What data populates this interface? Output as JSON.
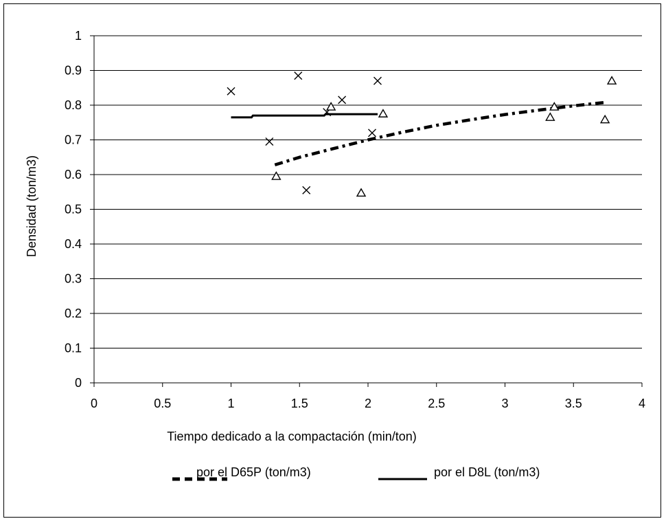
{
  "chart_data": {
    "type": "scatter",
    "xlabel": "Tiempo dedicado a la compactación (min/ton)",
    "ylabel": "Densidad (ton/m3)",
    "xlim": [
      0,
      4
    ],
    "ylim": [
      0,
      1
    ],
    "xticks": [
      "0",
      "0.5",
      "1",
      "1.5",
      "2",
      "2.5",
      "3",
      "3.5",
      "4"
    ],
    "yticks": [
      "0",
      "0.1",
      "0.2",
      "0.3",
      "0.4",
      "0.5",
      "0.6",
      "0.7",
      "0.8",
      "0.9",
      "1"
    ],
    "grid": "horizontal",
    "legend_position": "bottom",
    "legend": [
      "por el D65P (ton/m3)",
      "por el D8L (ton/m3)"
    ],
    "series": [
      {
        "marker": "x",
        "points": [
          [
            1.0,
            0.84
          ],
          [
            1.28,
            0.695
          ],
          [
            1.49,
            0.885
          ],
          [
            1.55,
            0.555
          ],
          [
            1.7,
            0.78
          ],
          [
            1.81,
            0.815
          ],
          [
            2.03,
            0.72
          ],
          [
            2.07,
            0.87
          ]
        ]
      },
      {
        "marker": "triangle",
        "points": [
          [
            1.33,
            0.595
          ],
          [
            1.73,
            0.795
          ],
          [
            1.95,
            0.547
          ],
          [
            2.11,
            0.775
          ],
          [
            3.33,
            0.765
          ],
          [
            3.36,
            0.795
          ],
          [
            3.73,
            0.758
          ],
          [
            3.78,
            0.87
          ]
        ]
      }
    ],
    "trendlines": [
      {
        "name": "por el D65P (ton/m3)",
        "style": "dashdot",
        "points": [
          [
            1.32,
            0.628
          ],
          [
            1.5,
            0.65
          ],
          [
            1.75,
            0.675
          ],
          [
            2.0,
            0.7
          ],
          [
            2.25,
            0.722
          ],
          [
            2.5,
            0.742
          ],
          [
            2.75,
            0.758
          ],
          [
            3.0,
            0.773
          ],
          [
            3.25,
            0.786
          ],
          [
            3.5,
            0.798
          ],
          [
            3.73,
            0.808
          ]
        ]
      },
      {
        "name": "por el D8L (ton/m3)",
        "style": "solid",
        "points": [
          [
            1.0,
            0.765
          ],
          [
            1.15,
            0.765
          ],
          [
            1.16,
            0.77
          ],
          [
            1.68,
            0.77
          ],
          [
            1.69,
            0.774
          ],
          [
            2.07,
            0.774
          ]
        ]
      }
    ]
  }
}
